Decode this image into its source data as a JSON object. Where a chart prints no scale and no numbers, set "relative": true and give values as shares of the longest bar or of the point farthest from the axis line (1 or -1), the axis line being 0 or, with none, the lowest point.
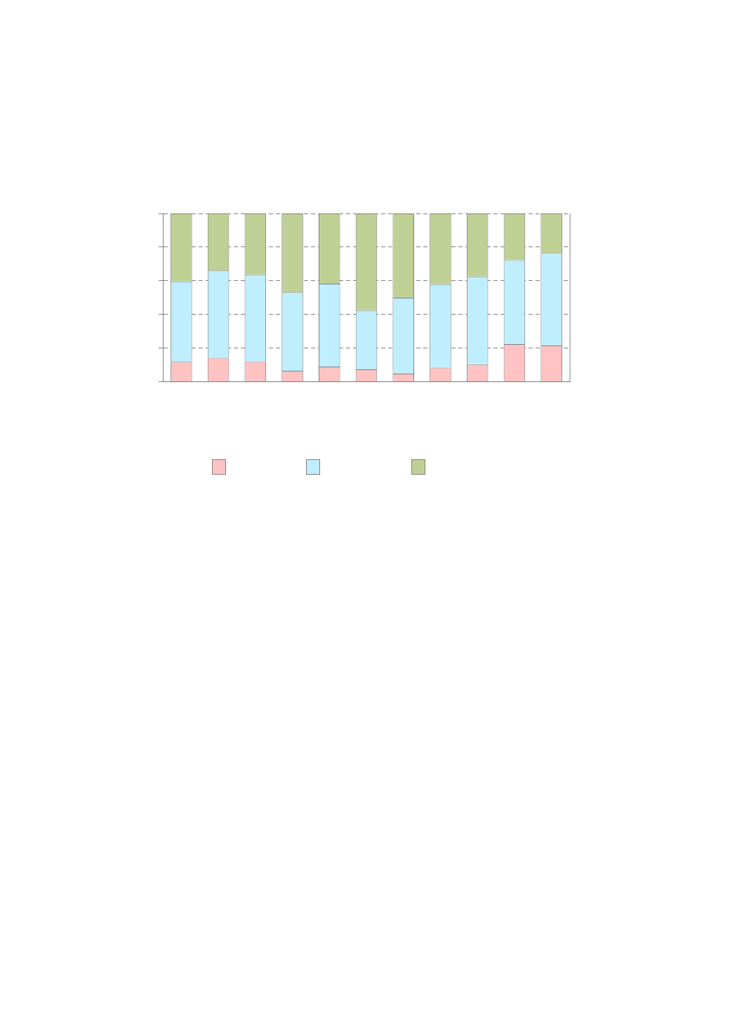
{
  "chart_data": {
    "type": "bar",
    "stacked": true,
    "relative": true,
    "grid": "y",
    "categories": [
      null,
      null,
      null,
      null,
      null,
      null,
      null,
      null,
      null,
      null,
      null
    ],
    "series": [
      {
        "color": "#ffc3c3",
        "values": [
          0.118,
          0.142,
          0.121,
          0.065,
          0.09,
          0.073,
          0.048,
          0.084,
          0.104,
          0.224,
          0.215
        ]
      },
      {
        "color": "#bfeeff",
        "values": [
          0.478,
          0.519,
          0.517,
          0.467,
          0.493,
          0.352,
          0.451,
          0.495,
          0.521,
          0.498,
          0.55
        ]
      },
      {
        "color": "#bfd094",
        "values": [
          0.404,
          0.339,
          0.362,
          0.468,
          0.417,
          0.575,
          0.501,
          0.421,
          0.375,
          0.278,
          0.235
        ]
      }
    ]
  }
}
